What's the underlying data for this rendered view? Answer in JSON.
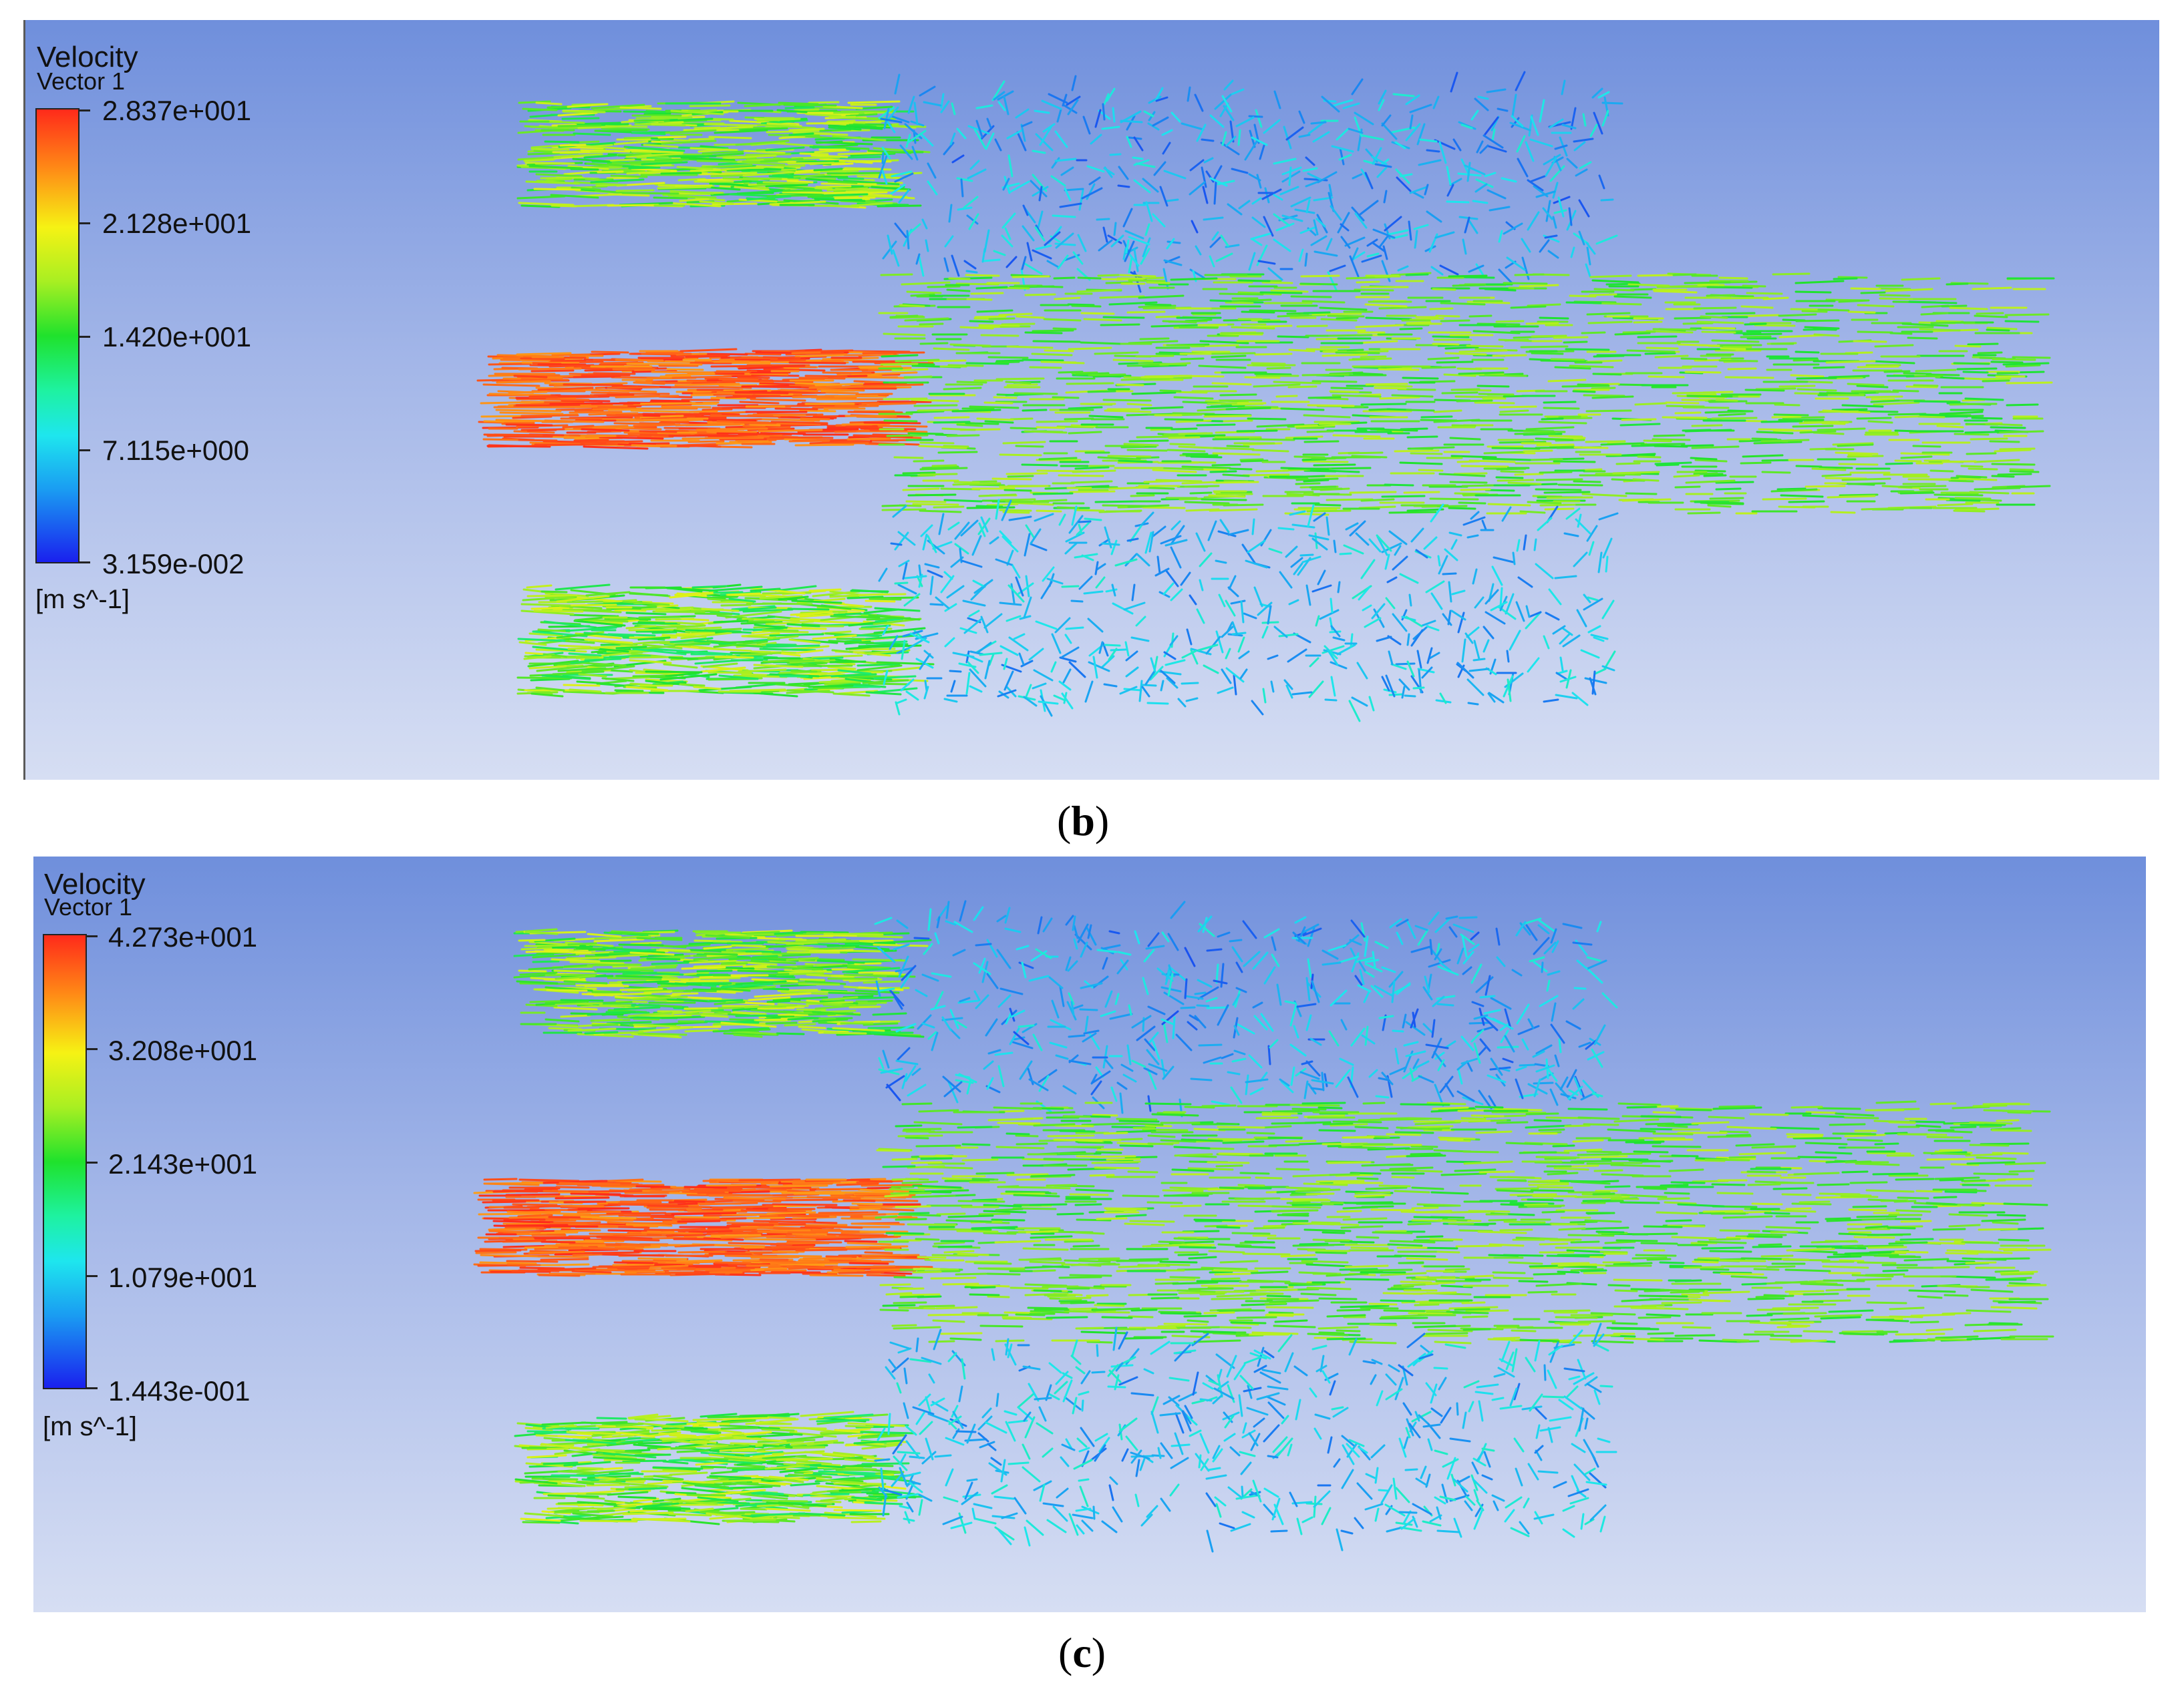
{
  "panels": [
    {
      "id": "b",
      "legend_title": "Velocity",
      "legend_subtitle": "Vector 1",
      "ticks": [
        "2.837e+001",
        "2.128e+001",
        "1.420e+001",
        "7.115e+000",
        "3.159e-002"
      ],
      "units": "[m s^-1]",
      "caption_label": "b"
    },
    {
      "id": "c",
      "legend_title": "Velocity",
      "legend_subtitle": "Vector 1",
      "ticks": [
        "4.273e+001",
        "3.208e+001",
        "2.143e+001",
        "1.079e+001",
        "1.443e-001"
      ],
      "units": "[m s^-1]",
      "caption_label": "c"
    }
  ],
  "colorbar_colors": [
    "#ff2a1a",
    "#ff8a16",
    "#f6f214",
    "#a8ef22",
    "#1fe22c",
    "#1ef2a0",
    "#1ee6ee",
    "#1a9cf2",
    "#1a20ee"
  ],
  "background_colors": {
    "top": "#6f8fdc",
    "bottom": "#d6def3"
  }
}
